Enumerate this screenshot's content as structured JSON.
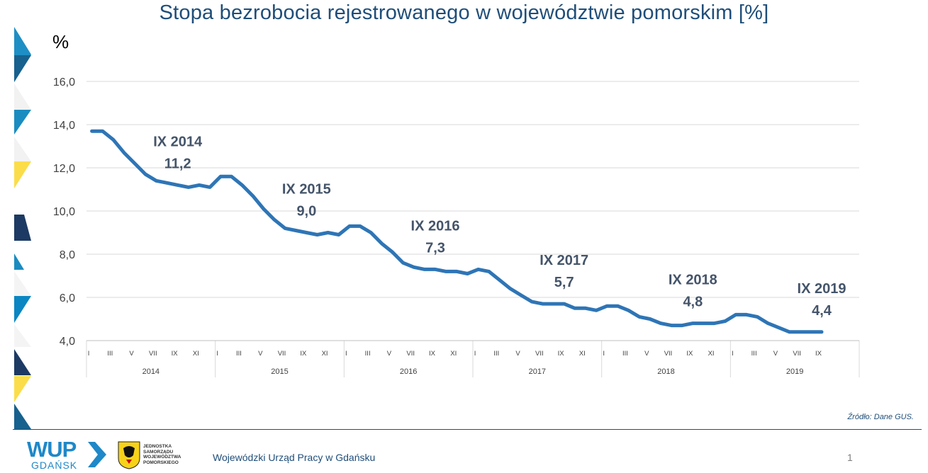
{
  "slide": {
    "title": "Stopa bezrobocia rejestrowanego w województwie pomorskim  [%]",
    "unit_label": "%",
    "source": "Źródło: Dane GUS.",
    "footer_org": "Wojewódzki  Urząd Pracy w Gdańsku",
    "page_number": "1",
    "logo": {
      "wup": "WUP",
      "city": "GDAŃSK",
      "crest_text": [
        "JEDNOSTKA",
        "SAMORZĄDU",
        "WOJEWÓDZTWA",
        "POMORSKIEGO"
      ]
    },
    "colors": {
      "title": "#1f4e79",
      "line": "#2e75b6",
      "annotation": "#44546a",
      "grid": "#d9d9d9"
    }
  },
  "chart_data": {
    "type": "line",
    "title": "Stopa bezrobocia rejestrowanego w województwie pomorskim  [%]",
    "ylabel": "%",
    "ylim": [
      4.0,
      16.0
    ],
    "yticks": [
      "4,0",
      "6,0",
      "8,0",
      "10,0",
      "12,0",
      "14,0",
      "16,0"
    ],
    "grid": true,
    "month_ticks": [
      "I",
      "III",
      "V",
      "VII",
      "IX",
      "XI"
    ],
    "years": [
      "2014",
      "2015",
      "2016",
      "2017",
      "2018",
      "2019"
    ],
    "series": [
      {
        "values": [
          13.7,
          13.7,
          13.3,
          12.7,
          12.2,
          11.7,
          11.4,
          11.3,
          11.2,
          11.1,
          11.2,
          11.1,
          11.6,
          11.6,
          11.2,
          10.7,
          10.1,
          9.6,
          9.2,
          9.1,
          9.0,
          8.9,
          9.0,
          8.9,
          9.3,
          9.3,
          9.0,
          8.5,
          8.1,
          7.6,
          7.4,
          7.3,
          7.3,
          7.2,
          7.2,
          7.1,
          7.3,
          7.2,
          6.8,
          6.4,
          6.1,
          5.8,
          5.7,
          5.7,
          5.7,
          5.5,
          5.5,
          5.4,
          5.6,
          5.6,
          5.4,
          5.1,
          5.0,
          4.8,
          4.7,
          4.7,
          4.8,
          4.8,
          4.8,
          4.9,
          5.2,
          5.2,
          5.1,
          4.8,
          4.6,
          4.4,
          4.4,
          4.4,
          4.4
        ]
      }
    ],
    "annotations": [
      {
        "period": "IX 2014",
        "value": "11,2",
        "index": 8
      },
      {
        "period": "IX 2015",
        "value": "9,0",
        "index": 20
      },
      {
        "period": "IX 2016",
        "value": "7,3",
        "index": 32
      },
      {
        "period": "IX 2017",
        "value": "5,7",
        "index": 44
      },
      {
        "period": "IX 2018",
        "value": "4,8",
        "index": 56
      },
      {
        "period": "IX 2019",
        "value": "4,4",
        "index": 68
      }
    ]
  }
}
